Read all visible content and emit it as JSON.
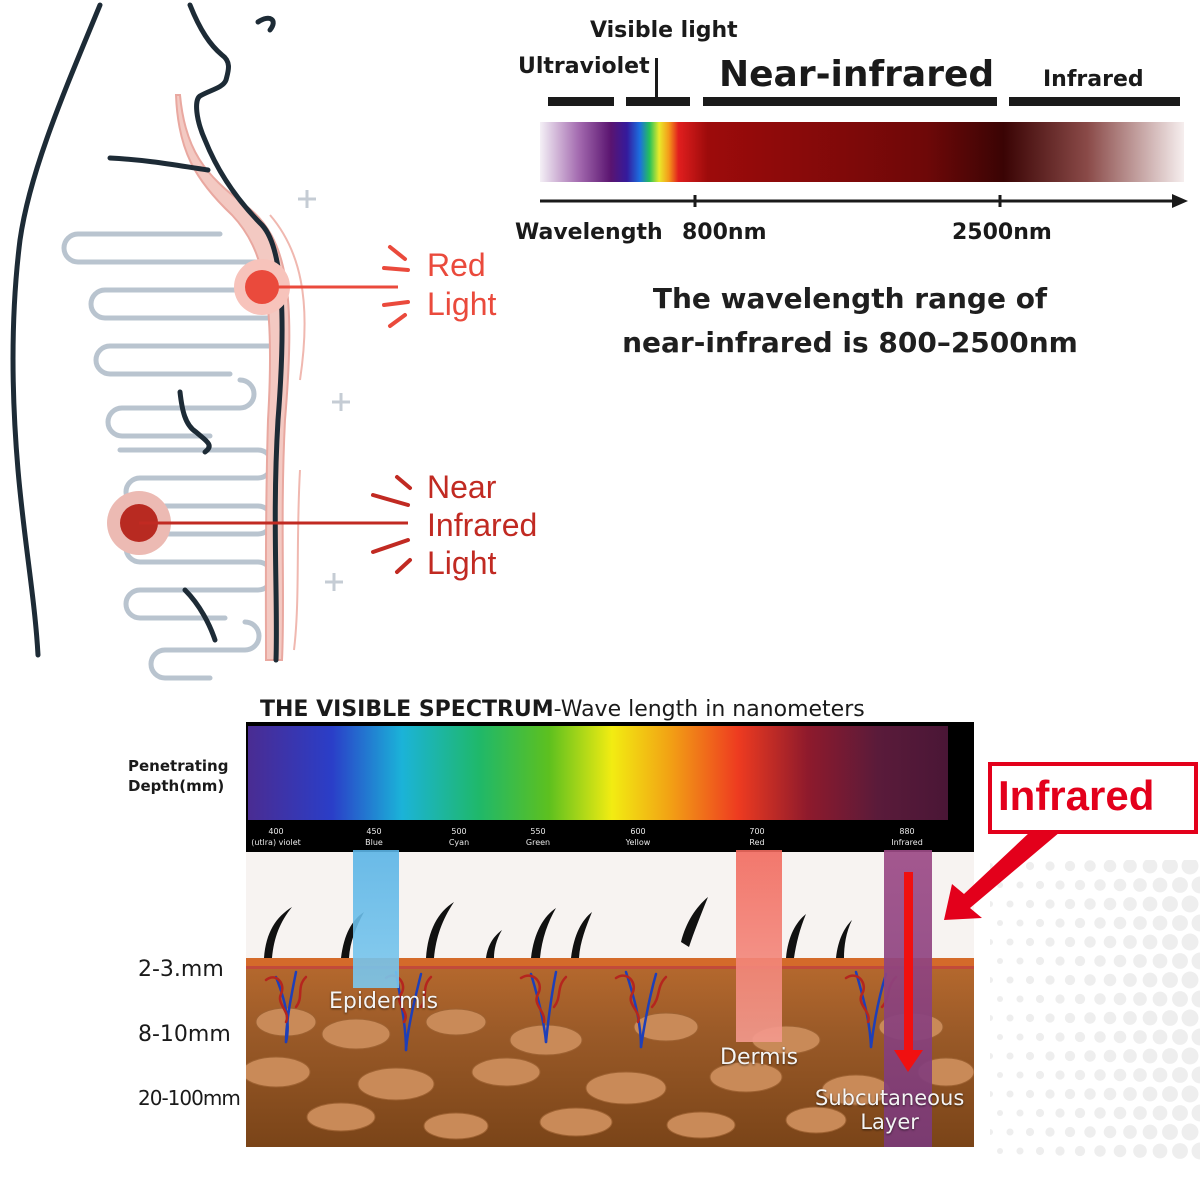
{
  "body_diagram": {
    "red_light": {
      "line1": "Red",
      "line2": "Light",
      "color": "#ea4a3c"
    },
    "near_infrared": {
      "line1": "Near",
      "line2": "Infrared",
      "line3": "Light",
      "color": "#c12a22"
    }
  },
  "spectrum_bar": {
    "labels": {
      "ultraviolet": "Ultraviolet",
      "visible": "Visible light",
      "near_infrared": "Near-infrared",
      "infrared": "Infrared"
    },
    "axis": {
      "name": "Wavelength",
      "marks": [
        "800nm",
        "2500nm"
      ]
    },
    "caption": {
      "line1": "The wavelength range of",
      "line2": "near-infrared is 800–2500nm"
    }
  },
  "visible_spectrum": {
    "title_bold": "THE VISIBLE SPECTRUM",
    "title_rest": "-Wave length in nanometers",
    "depth_header": {
      "line1": "Penetrating",
      "line2": "Depth(mm)"
    },
    "ticks": [
      {
        "nm": "400",
        "name": "(utlra) violet"
      },
      {
        "nm": "450",
        "name": "Blue"
      },
      {
        "nm": "500",
        "name": "Cyan"
      },
      {
        "nm": "550",
        "name": "Green"
      },
      {
        "nm": "600",
        "name": "Yellow"
      },
      {
        "nm": "700",
        "name": "Red"
      },
      {
        "nm": "880",
        "name": "Infrared"
      }
    ],
    "depths": [
      "2-3.mm",
      "8-10mm",
      "20-100mm"
    ],
    "layers": {
      "epidermis": "Epidermis",
      "dermis": "Dermis",
      "subcutaneous_line1": "Subcutaneous",
      "subcutaneous_line2": "Layer"
    },
    "callout": "Infrared",
    "colors": {
      "callout": "#e3001b",
      "skin": "#9a5a2a"
    }
  }
}
